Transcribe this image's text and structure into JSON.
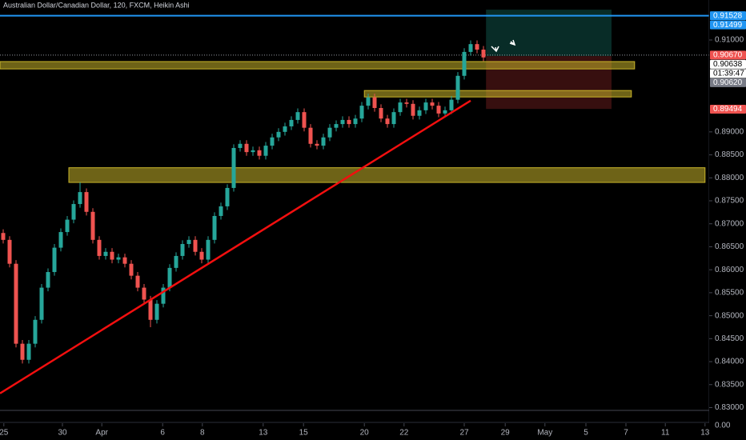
{
  "chart_data": {
    "type": "candlestick",
    "title": "Australian Dollar/Canadian Dollar, 120, FXCM, Heikin Ashi",
    "up_color": "#26a69a",
    "down_color": "#ef5350",
    "open": [
      0.868,
      0.8665,
      0.8613,
      0.8439,
      0.8404,
      0.8439,
      0.8491,
      0.8561,
      0.8595,
      0.8648,
      0.8682,
      0.8709,
      0.8743,
      0.8769,
      0.8726,
      0.8665,
      0.863,
      0.8639,
      0.8622,
      0.8627,
      0.8613,
      0.8587,
      0.8561,
      0.8535,
      0.8491,
      0.8526,
      0.8561,
      0.8604,
      0.863,
      0.8656,
      0.8665,
      0.8639,
      0.8622,
      0.8665,
      0.8717,
      0.8738,
      0.8778,
      0.8865,
      0.8874,
      0.8856,
      0.886,
      0.8848,
      0.887,
      0.8888,
      0.89,
      0.8912,
      0.8926,
      0.8943,
      0.8909,
      0.8874,
      0.887,
      0.8888,
      0.8909,
      0.8917,
      0.8926,
      0.8917,
      0.8929,
      0.8957,
      0.8975,
      0.8952,
      0.8929,
      0.8917,
      0.8943,
      0.8964,
      0.8961,
      0.8935,
      0.8947,
      0.8964,
      0.8957,
      0.894,
      0.8947,
      0.897,
      0.9022,
      0.9074,
      0.9091,
      0.9079
    ],
    "high": [
      0.8688,
      0.8673,
      0.8621,
      0.8447,
      0.8447,
      0.8499,
      0.8569,
      0.8603,
      0.8656,
      0.869,
      0.8717,
      0.8751,
      0.879,
      0.8777,
      0.8734,
      0.8673,
      0.8647,
      0.8647,
      0.8635,
      0.8635,
      0.8621,
      0.8595,
      0.8569,
      0.8543,
      0.8534,
      0.8569,
      0.8612,
      0.8638,
      0.8664,
      0.8673,
      0.8673,
      0.8647,
      0.8673,
      0.8725,
      0.8746,
      0.8786,
      0.8873,
      0.8882,
      0.8882,
      0.8868,
      0.8868,
      0.8878,
      0.8896,
      0.8908,
      0.892,
      0.8934,
      0.8951,
      0.8951,
      0.8917,
      0.8882,
      0.8896,
      0.8917,
      0.8925,
      0.8934,
      0.8934,
      0.8937,
      0.8965,
      0.8983,
      0.8983,
      0.896,
      0.8937,
      0.8951,
      0.8972,
      0.8972,
      0.8969,
      0.8955,
      0.8972,
      0.8972,
      0.8965,
      0.8955,
      0.8978,
      0.903,
      0.9082,
      0.9099,
      0.9099,
      0.9087
    ],
    "low": [
      0.8657,
      0.8605,
      0.8431,
      0.8396,
      0.8396,
      0.8431,
      0.8483,
      0.8553,
      0.8587,
      0.864,
      0.8674,
      0.8701,
      0.8735,
      0.8718,
      0.8657,
      0.8622,
      0.8622,
      0.8614,
      0.8614,
      0.8605,
      0.8579,
      0.8553,
      0.8527,
      0.8475,
      0.8483,
      0.8518,
      0.8553,
      0.8596,
      0.8622,
      0.8648,
      0.8631,
      0.8614,
      0.8614,
      0.8657,
      0.8709,
      0.873,
      0.877,
      0.8857,
      0.8848,
      0.8848,
      0.884,
      0.884,
      0.8862,
      0.888,
      0.8892,
      0.8904,
      0.8918,
      0.8901,
      0.8866,
      0.8862,
      0.8862,
      0.888,
      0.8901,
      0.8909,
      0.8909,
      0.8909,
      0.8921,
      0.8949,
      0.8944,
      0.8921,
      0.8909,
      0.8909,
      0.8935,
      0.8953,
      0.8927,
      0.8927,
      0.8939,
      0.8949,
      0.8932,
      0.8932,
      0.8939,
      0.8962,
      0.9014,
      0.9066,
      0.9071,
      0.9054
    ],
    "close": [
      0.8665,
      0.8613,
      0.8439,
      0.8404,
      0.8439,
      0.8491,
      0.8561,
      0.8595,
      0.8648,
      0.8682,
      0.8709,
      0.8743,
      0.8769,
      0.8726,
      0.8665,
      0.863,
      0.8639,
      0.8622,
      0.8627,
      0.8613,
      0.8587,
      0.8561,
      0.8535,
      0.8491,
      0.8526,
      0.8561,
      0.8604,
      0.863,
      0.8656,
      0.8665,
      0.8639,
      0.8622,
      0.8665,
      0.8717,
      0.8738,
      0.8778,
      0.8865,
      0.8874,
      0.8856,
      0.886,
      0.8848,
      0.887,
      0.8888,
      0.89,
      0.8912,
      0.8926,
      0.8943,
      0.8909,
      0.8874,
      0.887,
      0.8888,
      0.8909,
      0.8917,
      0.8926,
      0.8917,
      0.8929,
      0.8957,
      0.8975,
      0.8952,
      0.8929,
      0.8917,
      0.8943,
      0.8964,
      0.8961,
      0.8935,
      0.8947,
      0.8964,
      0.8957,
      0.894,
      0.8947,
      0.897,
      0.9022,
      0.9074,
      0.9091,
      0.9079,
      0.9062
    ],
    "xlim": [
      -0.5,
      116
    ],
    "xticks": [
      {
        "value": 0.1,
        "label": "25"
      },
      {
        "value": 9.25,
        "label": "30"
      },
      {
        "value": 15.4,
        "label": "Apr"
      },
      {
        "value": 24.9,
        "label": "6"
      },
      {
        "value": 31.1,
        "label": "8"
      },
      {
        "value": 40.6,
        "label": "13"
      },
      {
        "value": 46.9,
        "label": "15"
      },
      {
        "value": 56.4,
        "label": "20"
      },
      {
        "value": 62.6,
        "label": "22"
      },
      {
        "value": 72,
        "label": "27"
      },
      {
        "value": 78.4,
        "label": "29"
      },
      {
        "value": 84.6,
        "label": "May"
      },
      {
        "value": 91,
        "label": "5"
      },
      {
        "value": 97.25,
        "label": "7"
      },
      {
        "value": 103.4,
        "label": "11"
      },
      {
        "value": 109.6,
        "label": "13"
      }
    ],
    "ylim": [
      0.8273,
      0.9187
    ],
    "yticks": [
      {
        "value": 0.91,
        "label": "0.91000"
      },
      {
        "value": 0.89,
        "label": "0.89000"
      },
      {
        "value": 0.885,
        "label": "0.88500"
      },
      {
        "value": 0.88,
        "label": "0.88000"
      },
      {
        "value": 0.875,
        "label": "0.87500"
      },
      {
        "value": 0.87,
        "label": "0.87000"
      },
      {
        "value": 0.865,
        "label": "0.86500"
      },
      {
        "value": 0.86,
        "label": "0.86000"
      },
      {
        "value": 0.855,
        "label": "0.85500"
      },
      {
        "value": 0.85,
        "label": "0.85000"
      },
      {
        "value": 0.845,
        "label": "0.84500"
      },
      {
        "value": 0.84,
        "label": "0.84000"
      },
      {
        "value": 0.835,
        "label": "0.83500"
      },
      {
        "value": 0.83,
        "label": "0.83000"
      }
    ],
    "pane_tick": "0.00",
    "price_labels": [
      {
        "value": 0.91528,
        "label": "0.91528",
        "color": "#2196f3",
        "text_color": "#ffffff"
      },
      {
        "value": 0.91499,
        "label": "0.91499",
        "color": "#2196f3",
        "text_color": "#ffffff"
      },
      {
        "value": 0.9067,
        "label": "0.90670",
        "color": "#ef5350",
        "text_color": "#ffffff"
      },
      {
        "value": 0.90638,
        "label": "0.90638",
        "color": "#ffffff",
        "text_color": "#000000"
      },
      {
        "value": 0.9062,
        "label": "0.90620",
        "color": "#787b86",
        "text_color": "#ffffff"
      },
      {
        "value": 0.89494,
        "label": "0.89494",
        "color": "#ef5350",
        "text_color": "#ffffff"
      }
    ],
    "countdown": "01:39:47",
    "hlines": [
      {
        "value": 0.91528,
        "color": "#2196f3",
        "style": "solid"
      },
      {
        "value": 0.9067,
        "color": "#9598a1",
        "style": "dotted"
      }
    ],
    "zones": [
      {
        "low": 0.9037,
        "high": 0.9053,
        "x_from": -0.5,
        "x_to": 98.6
      },
      {
        "low": 0.8976,
        "high": 0.899,
        "x_from": 56.4,
        "x_to": 98.1
      },
      {
        "low": 0.879,
        "high": 0.8822,
        "x_from": 10.25,
        "x_to": 109.6
      }
    ],
    "zone_color": "#c9b52a",
    "position": {
      "target": 0.9166,
      "entry": 0.9065,
      "stop": 0.895,
      "x_from": 75.4,
      "x_to": 95
    },
    "trendline": {
      "x1": -0.5,
      "y1": 0.8331,
      "x2": 73,
      "y2": 0.8968,
      "color": "#f20f0f"
    }
  }
}
